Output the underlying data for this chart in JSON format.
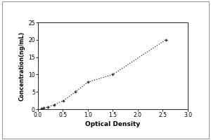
{
  "x_data": [
    0.073,
    0.113,
    0.2,
    0.317,
    0.513,
    0.75,
    1.0,
    1.5,
    2.56
  ],
  "y_data": [
    0.156,
    0.312,
    0.625,
    1.25,
    2.5,
    5.0,
    7.8,
    10.0,
    20.0
  ],
  "xlabel": "Optical Density",
  "ylabel": "Concentration(ng/mL)",
  "xlim": [
    0,
    3
  ],
  "ylim": [
    0,
    25
  ],
  "xticks": [
    0,
    0.5,
    1,
    1.5,
    2,
    2.5,
    3
  ],
  "yticks": [
    0,
    5,
    10,
    15,
    20,
    25
  ],
  "line_color": "#2a2a2a",
  "marker_color": "#2a2a2a",
  "background_color": "#ffffff",
  "marker": "+",
  "linestyle": "dotted",
  "xlabel_fontsize": 6.5,
  "ylabel_fontsize": 5.8,
  "tick_fontsize": 5.5,
  "outer_border_color": "#aaaaaa",
  "fig_width": 3.0,
  "fig_height": 2.0,
  "dpi": 100
}
